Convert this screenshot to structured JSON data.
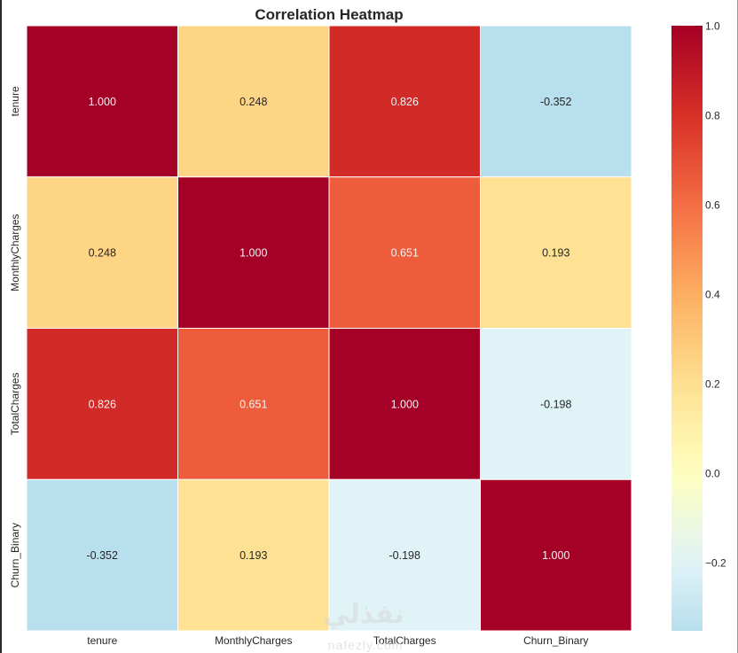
{
  "chart_data": {
    "type": "heatmap",
    "title": "Correlation Heatmap",
    "xlabel": "",
    "ylabel": "",
    "x_categories": [
      "tenure",
      "MonthlyCharges",
      "TotalCharges",
      "Churn_Binary"
    ],
    "y_categories": [
      "tenure",
      "MonthlyCharges",
      "TotalCharges",
      "Churn_Binary"
    ],
    "values": [
      [
        1.0,
        0.248,
        0.826,
        -0.352
      ],
      [
        0.248,
        1.0,
        0.651,
        0.193
      ],
      [
        0.826,
        0.651,
        1.0,
        -0.198
      ],
      [
        -0.352,
        0.193,
        -0.198,
        1.0
      ]
    ],
    "annotation_format": "0.000",
    "colormap": "RdYlBu_r",
    "color_center": 0.0,
    "vmin": -0.352,
    "vmax": 1.0,
    "colorbar": {
      "ticks": [
        1.0,
        0.8,
        0.6,
        0.4,
        0.2,
        0.0,
        -0.2
      ],
      "tick_labels": [
        "1.0",
        "0.8",
        "0.6",
        "0.4",
        "0.2",
        "0.0",
        "−0.2"
      ],
      "placement": "right"
    },
    "grid": false
  },
  "watermark": {
    "arabic": "نفذلي",
    "latin": "nafezly.com"
  }
}
